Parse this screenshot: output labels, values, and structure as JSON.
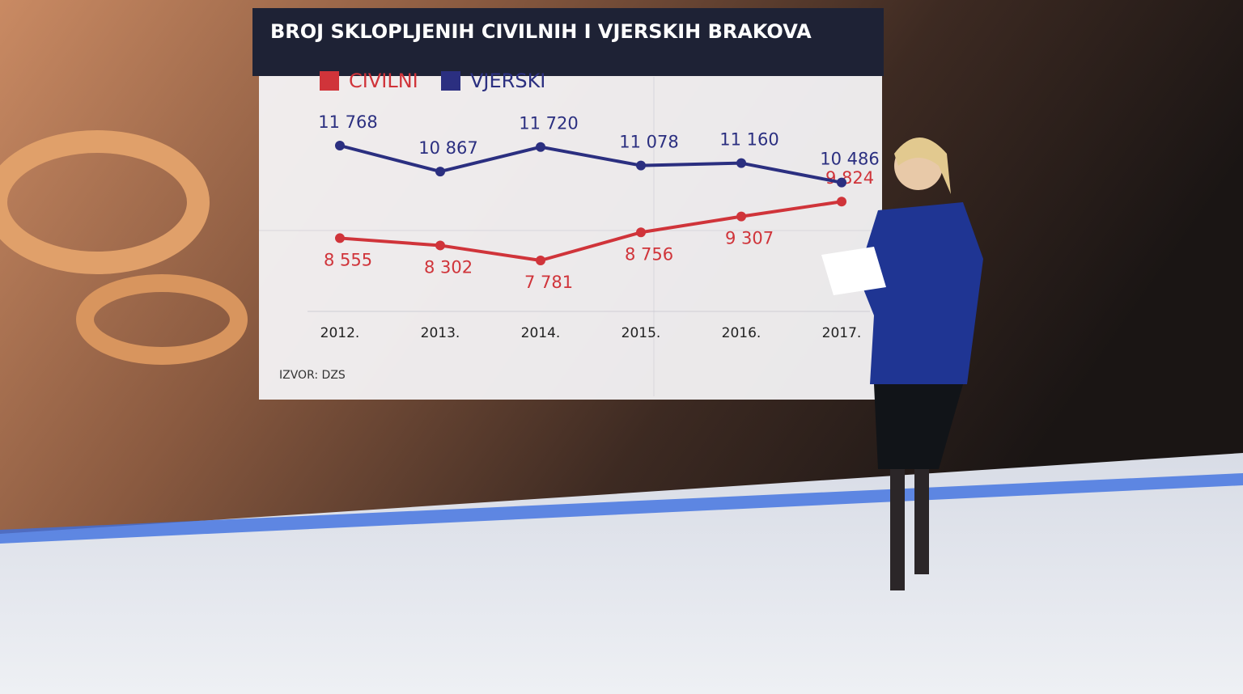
{
  "chart_data": {
    "type": "line",
    "title": "BROJ SKLOPLJENIH CIVILNIH  I VJERSKIH BRAKOVA",
    "categories": [
      "2012.",
      "2013.",
      "2014.",
      "2015.",
      "2016.",
      "2017."
    ],
    "series": [
      {
        "name": "CIVILNI",
        "color": "#d0343a",
        "values": [
          8555,
          8302,
          7781,
          8756,
          9307,
          9824
        ],
        "value_labels": [
          "8 555",
          "8 302",
          "7 781",
          "8 756",
          "9 307",
          "9 824"
        ]
      },
      {
        "name": "VJERSKI",
        "color": "#2b2f80",
        "values": [
          11768,
          10867,
          11720,
          11078,
          11160,
          10486
        ],
        "value_labels": [
          "11 768",
          "10 867",
          "11 720",
          "11 078",
          "11 160",
          "10 486"
        ]
      }
    ],
    "source": "IZVOR: DZS"
  }
}
